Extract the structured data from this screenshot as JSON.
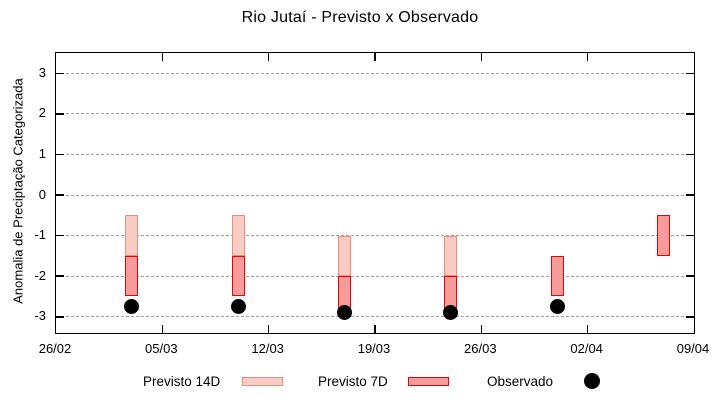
{
  "chart_data": {
    "type": "bar",
    "subtype": "floating-range-bars-with-scatter",
    "title": "Rio Jutaí - Previsto x Observado",
    "xlabel": "",
    "ylabel": "Anomalia de Preciptação Categorizada",
    "ylim": [
      -3.4,
      3.5
    ],
    "xlim_days_from_first_tick": [
      0,
      42
    ],
    "grid": "horizontal dashed lines at integer y values",
    "legend_position": "below plot, horizontal",
    "yticks": [
      3,
      2,
      1,
      0,
      -1,
      -2,
      -3
    ],
    "xticks": [
      {
        "day": 0,
        "label": "26/02"
      },
      {
        "day": 7,
        "label": "05/03"
      },
      {
        "day": 14,
        "label": "12/03"
      },
      {
        "day": 21,
        "label": "19/03"
      },
      {
        "day": 28,
        "label": "26/03"
      },
      {
        "day": 35,
        "label": "02/04"
      },
      {
        "day": 42,
        "label": "09/04"
      }
    ],
    "series": [
      {
        "name": "Previsto 14D",
        "type": "range-bar",
        "fill": "#f9cdc5",
        "border": "#ef8d77",
        "points": [
          {
            "day": 5,
            "low": -1.5,
            "high": -0.5
          },
          {
            "day": 12,
            "low": -1.5,
            "high": -0.5
          },
          {
            "day": 19,
            "low": -2.0,
            "high": -1.0
          },
          {
            "day": 26,
            "low": -2.0,
            "high": -1.0
          }
        ]
      },
      {
        "name": "Previsto 7D",
        "type": "range-bar",
        "fill": "#f79b9b",
        "border": "#e30505",
        "points": [
          {
            "day": 5,
            "low": -2.5,
            "high": -1.5
          },
          {
            "day": 12,
            "low": -2.5,
            "high": -1.5
          },
          {
            "day": 19,
            "low": -3.0,
            "high": -2.0
          },
          {
            "day": 26,
            "low": -3.0,
            "high": -2.0
          },
          {
            "day": 33,
            "low": -2.5,
            "high": -1.5
          },
          {
            "day": 40,
            "low": -1.5,
            "high": -0.5
          }
        ]
      },
      {
        "name": "Observado",
        "type": "scatter",
        "color": "#000000",
        "points": [
          {
            "day": 5,
            "value": -2.75
          },
          {
            "day": 12,
            "value": -2.75
          },
          {
            "day": 19,
            "value": -2.9
          },
          {
            "day": 26,
            "value": -2.9
          },
          {
            "day": 33,
            "value": -2.75
          }
        ]
      }
    ],
    "colors": {
      "grid": "#a0a0a0",
      "axis_border": "#000000"
    }
  }
}
